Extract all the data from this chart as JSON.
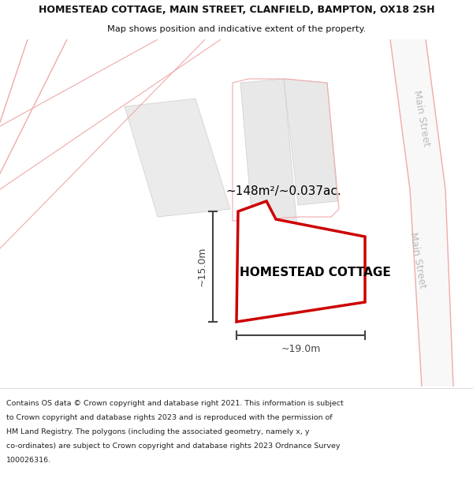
{
  "title": "HOMESTEAD COTTAGE, MAIN STREET, CLANFIELD, BAMPTON, OX18 2SH",
  "subtitle": "Map shows position and indicative extent of the property.",
  "footer_lines": [
    "Contains OS data © Crown copyright and database right 2021. This information is subject",
    "to Crown copyright and database rights 2023 and is reproduced with the permission of",
    "HM Land Registry. The polygons (including the associated geometry, namely x, y",
    "co-ordinates) are subject to Crown copyright and database rights 2023 Ordnance Survey",
    "100026316."
  ],
  "property_label": "HOMESTEAD COTTAGE",
  "area_label": "~148m²/~0.037ac.",
  "dim_v": "~15.0m",
  "dim_h": "~19.0m",
  "street_label": "Main Street",
  "bg_color": "#ffffff",
  "map_bg": "#ffffff",
  "property_edge": "#cc0000",
  "dim_color": "#444444",
  "road_line_color": "#f0aaaa",
  "gray_fill": "#e8e8e8",
  "gray_fill2": "#ebebeb",
  "bld_fill": "#d8d8d8",
  "street_color": "#bbbbbb",
  "title_fontsize": 9.0,
  "subtitle_fontsize": 8.2,
  "footer_fontsize": 6.8,
  "label_fontsize": 11,
  "area_fontsize": 11,
  "dim_fontsize": 9,
  "street_fontsize": 9
}
